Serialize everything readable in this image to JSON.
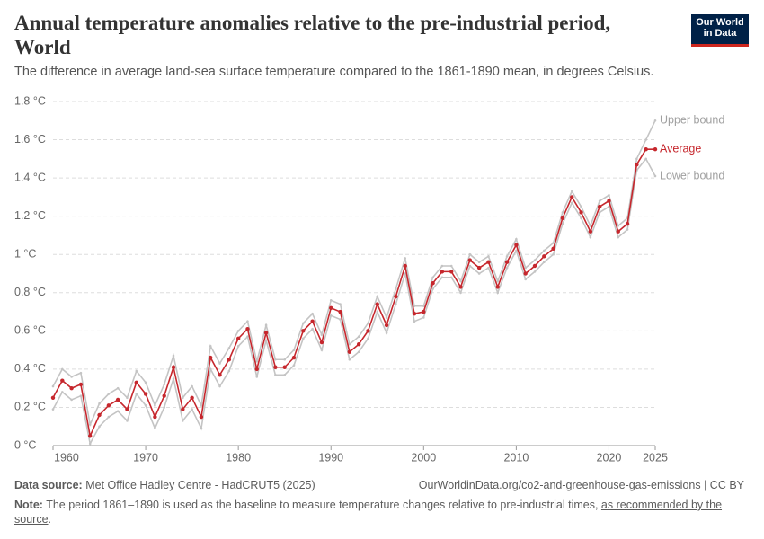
{
  "chart_data": {
    "type": "line",
    "title": "Annual temperature anomalies relative to the pre-industrial period, World",
    "subtitle": "The difference in average land-sea surface temperature compared to the 1861-1890 mean, in degrees Celsius.",
    "logo": [
      "Our World",
      "in Data"
    ],
    "source_label": "Data source:",
    "source": "Met Office Hadley Centre - HadCRUT5 (2025)",
    "url": "OurWorldinData.org/co2-and-greenhouse-gas-emissions | CC BY",
    "note_label": "Note:",
    "note_text": "The period 1861–1890 is used as the baseline to measure temperature changes relative to pre-industrial times, ",
    "note_link": "as recommended by the source",
    "note_end": ".",
    "x": [
      1960,
      1961,
      1962,
      1963,
      1964,
      1965,
      1966,
      1967,
      1968,
      1969,
      1970,
      1971,
      1972,
      1973,
      1974,
      1975,
      1976,
      1977,
      1978,
      1979,
      1980,
      1981,
      1982,
      1983,
      1984,
      1985,
      1986,
      1987,
      1988,
      1989,
      1990,
      1991,
      1992,
      1993,
      1994,
      1995,
      1996,
      1997,
      1998,
      1999,
      2000,
      2001,
      2002,
      2003,
      2004,
      2005,
      2006,
      2007,
      2008,
      2009,
      2010,
      2011,
      2012,
      2013,
      2014,
      2015,
      2016,
      2017,
      2018,
      2019,
      2020,
      2021,
      2022,
      2023,
      2024,
      2025
    ],
    "xlim": [
      1960,
      2025
    ],
    "xticks": [
      1960,
      1970,
      1980,
      1990,
      2000,
      2010,
      2020,
      2025
    ],
    "ylim": [
      0,
      1.8
    ],
    "yticks": [
      {
        "value": 0,
        "label": "0 °C"
      },
      {
        "value": 0.2,
        "label": "0.2 °C"
      },
      {
        "value": 0.4,
        "label": "0.4 °C"
      },
      {
        "value": 0.6,
        "label": "0.6 °C"
      },
      {
        "value": 0.8,
        "label": "0.8 °C"
      },
      {
        "value": 1,
        "label": "1 °C"
      },
      {
        "value": 1.2,
        "label": "1.2 °C"
      },
      {
        "value": 1.4,
        "label": "1.4 °C"
      },
      {
        "value": 1.6,
        "label": "1.6 °C"
      },
      {
        "value": 1.8,
        "label": "1.8 °C"
      }
    ],
    "grid": true,
    "series": [
      {
        "name": "Upper bound",
        "color": "#c4c4c4",
        "values": [
          0.31,
          0.4,
          0.36,
          0.38,
          0.11,
          0.22,
          0.27,
          0.3,
          0.25,
          0.39,
          0.33,
          0.21,
          0.32,
          0.47,
          0.25,
          0.31,
          0.21,
          0.52,
          0.43,
          0.51,
          0.6,
          0.65,
          0.44,
          0.63,
          0.45,
          0.45,
          0.5,
          0.64,
          0.69,
          0.58,
          0.76,
          0.74,
          0.53,
          0.57,
          0.64,
          0.78,
          0.67,
          0.82,
          0.98,
          0.73,
          0.73,
          0.88,
          0.94,
          0.94,
          0.86,
          1.0,
          0.96,
          0.99,
          0.86,
          0.99,
          1.08,
          0.93,
          0.97,
          1.02,
          1.06,
          1.22,
          1.33,
          1.25,
          1.15,
          1.28,
          1.31,
          1.15,
          1.19,
          1.5,
          1.6,
          1.7
        ]
      },
      {
        "name": "Average",
        "color": "#c6272d",
        "values": [
          0.25,
          0.34,
          0.3,
          0.32,
          0.05,
          0.16,
          0.21,
          0.24,
          0.19,
          0.33,
          0.27,
          0.15,
          0.26,
          0.41,
          0.19,
          0.25,
          0.15,
          0.46,
          0.37,
          0.45,
          0.56,
          0.61,
          0.4,
          0.59,
          0.41,
          0.41,
          0.46,
          0.6,
          0.65,
          0.54,
          0.72,
          0.7,
          0.49,
          0.53,
          0.6,
          0.74,
          0.63,
          0.78,
          0.94,
          0.69,
          0.7,
          0.85,
          0.91,
          0.91,
          0.83,
          0.97,
          0.93,
          0.96,
          0.83,
          0.96,
          1.05,
          0.9,
          0.94,
          0.99,
          1.03,
          1.19,
          1.3,
          1.22,
          1.12,
          1.25,
          1.28,
          1.12,
          1.16,
          1.47,
          1.55,
          1.55
        ]
      },
      {
        "name": "Lower bound",
        "color": "#c4c4c4",
        "values": [
          0.19,
          0.28,
          0.24,
          0.26,
          0.01,
          0.1,
          0.15,
          0.18,
          0.13,
          0.27,
          0.21,
          0.09,
          0.2,
          0.35,
          0.13,
          0.19,
          0.09,
          0.4,
          0.31,
          0.39,
          0.52,
          0.57,
          0.36,
          0.55,
          0.37,
          0.37,
          0.42,
          0.56,
          0.61,
          0.5,
          0.68,
          0.66,
          0.45,
          0.49,
          0.56,
          0.7,
          0.59,
          0.74,
          0.9,
          0.65,
          0.67,
          0.82,
          0.88,
          0.88,
          0.8,
          0.94,
          0.9,
          0.93,
          0.8,
          0.93,
          1.02,
          0.87,
          0.91,
          0.96,
          1.0,
          1.16,
          1.27,
          1.19,
          1.09,
          1.22,
          1.25,
          1.09,
          1.13,
          1.44,
          1.5,
          1.41
        ]
      }
    ]
  }
}
